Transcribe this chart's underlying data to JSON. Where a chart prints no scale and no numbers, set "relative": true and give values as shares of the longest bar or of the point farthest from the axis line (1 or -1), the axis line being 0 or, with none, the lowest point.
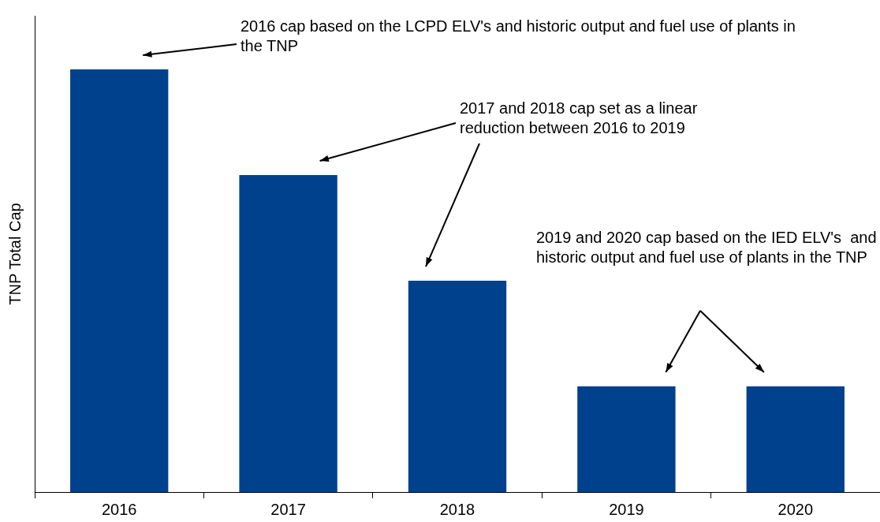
{
  "chart_data": {
    "type": "bar",
    "ylabel": "TNP Total Cap",
    "relative": true,
    "categories": [
      "2016",
      "2017",
      "2018",
      "2019",
      "2020"
    ],
    "values": [
      1,
      0.75,
      0.5,
      0.25,
      0.25
    ],
    "color": "#00418d",
    "grid": false,
    "legend": false,
    "annotations": [
      "2016 cap based on the LCPD ELV's and historic output and fuel use of plants in the TNP",
      "2017 and 2018 cap set as a linear reduction between 2016 to 2019",
      "2019 and 2020 cap based on the IED ELV's  and historic output and fuel use of plants in the TNP"
    ]
  }
}
